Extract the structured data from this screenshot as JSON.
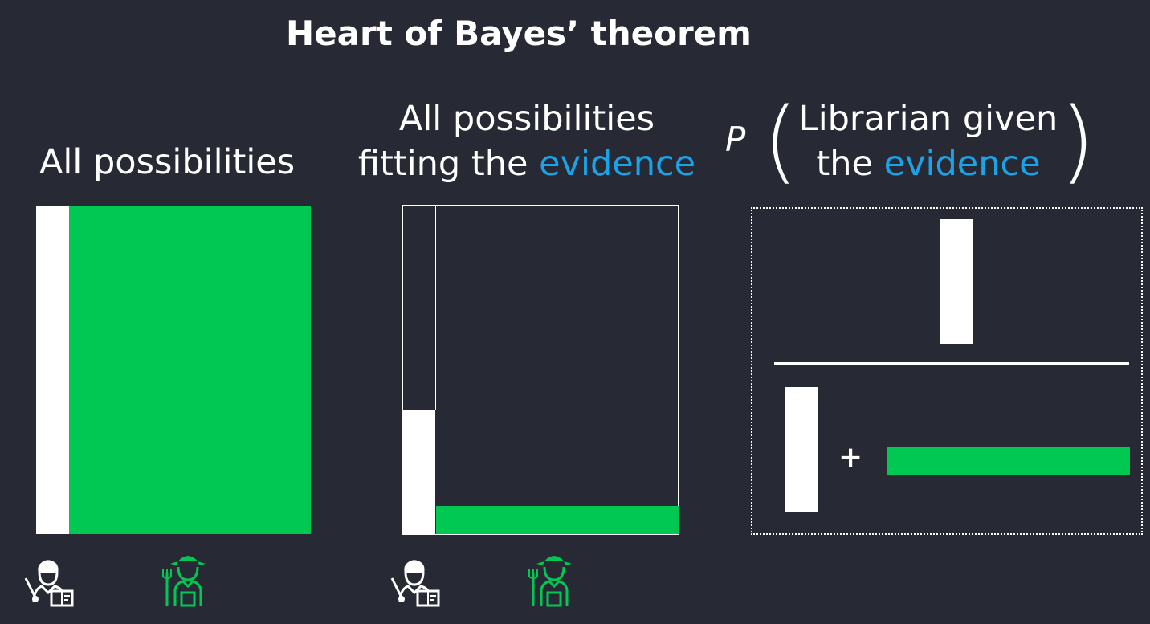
{
  "title": "Heart of Bayes’ theorem",
  "left_panel": {
    "heading": "All possibilities"
  },
  "middle_panel": {
    "heading_line1": "All possibilities",
    "heading_line2_prefix": "fitting the ",
    "heading_line2_highlight": "evidence"
  },
  "right_panel": {
    "p_symbol": "P",
    "open_paren": "(",
    "close_paren": ")",
    "line1": "Librarian given",
    "line2_prefix": "the ",
    "line2_highlight": "evidence",
    "plus": "+"
  },
  "icons": {
    "librarian": "librarian-icon",
    "farmer": "farmer-icon"
  },
  "colors": {
    "background": "#272a35",
    "farmer_green": "#00c853",
    "evidence_blue": "#1aa3e8",
    "librarian_white": "#ffffff"
  }
}
